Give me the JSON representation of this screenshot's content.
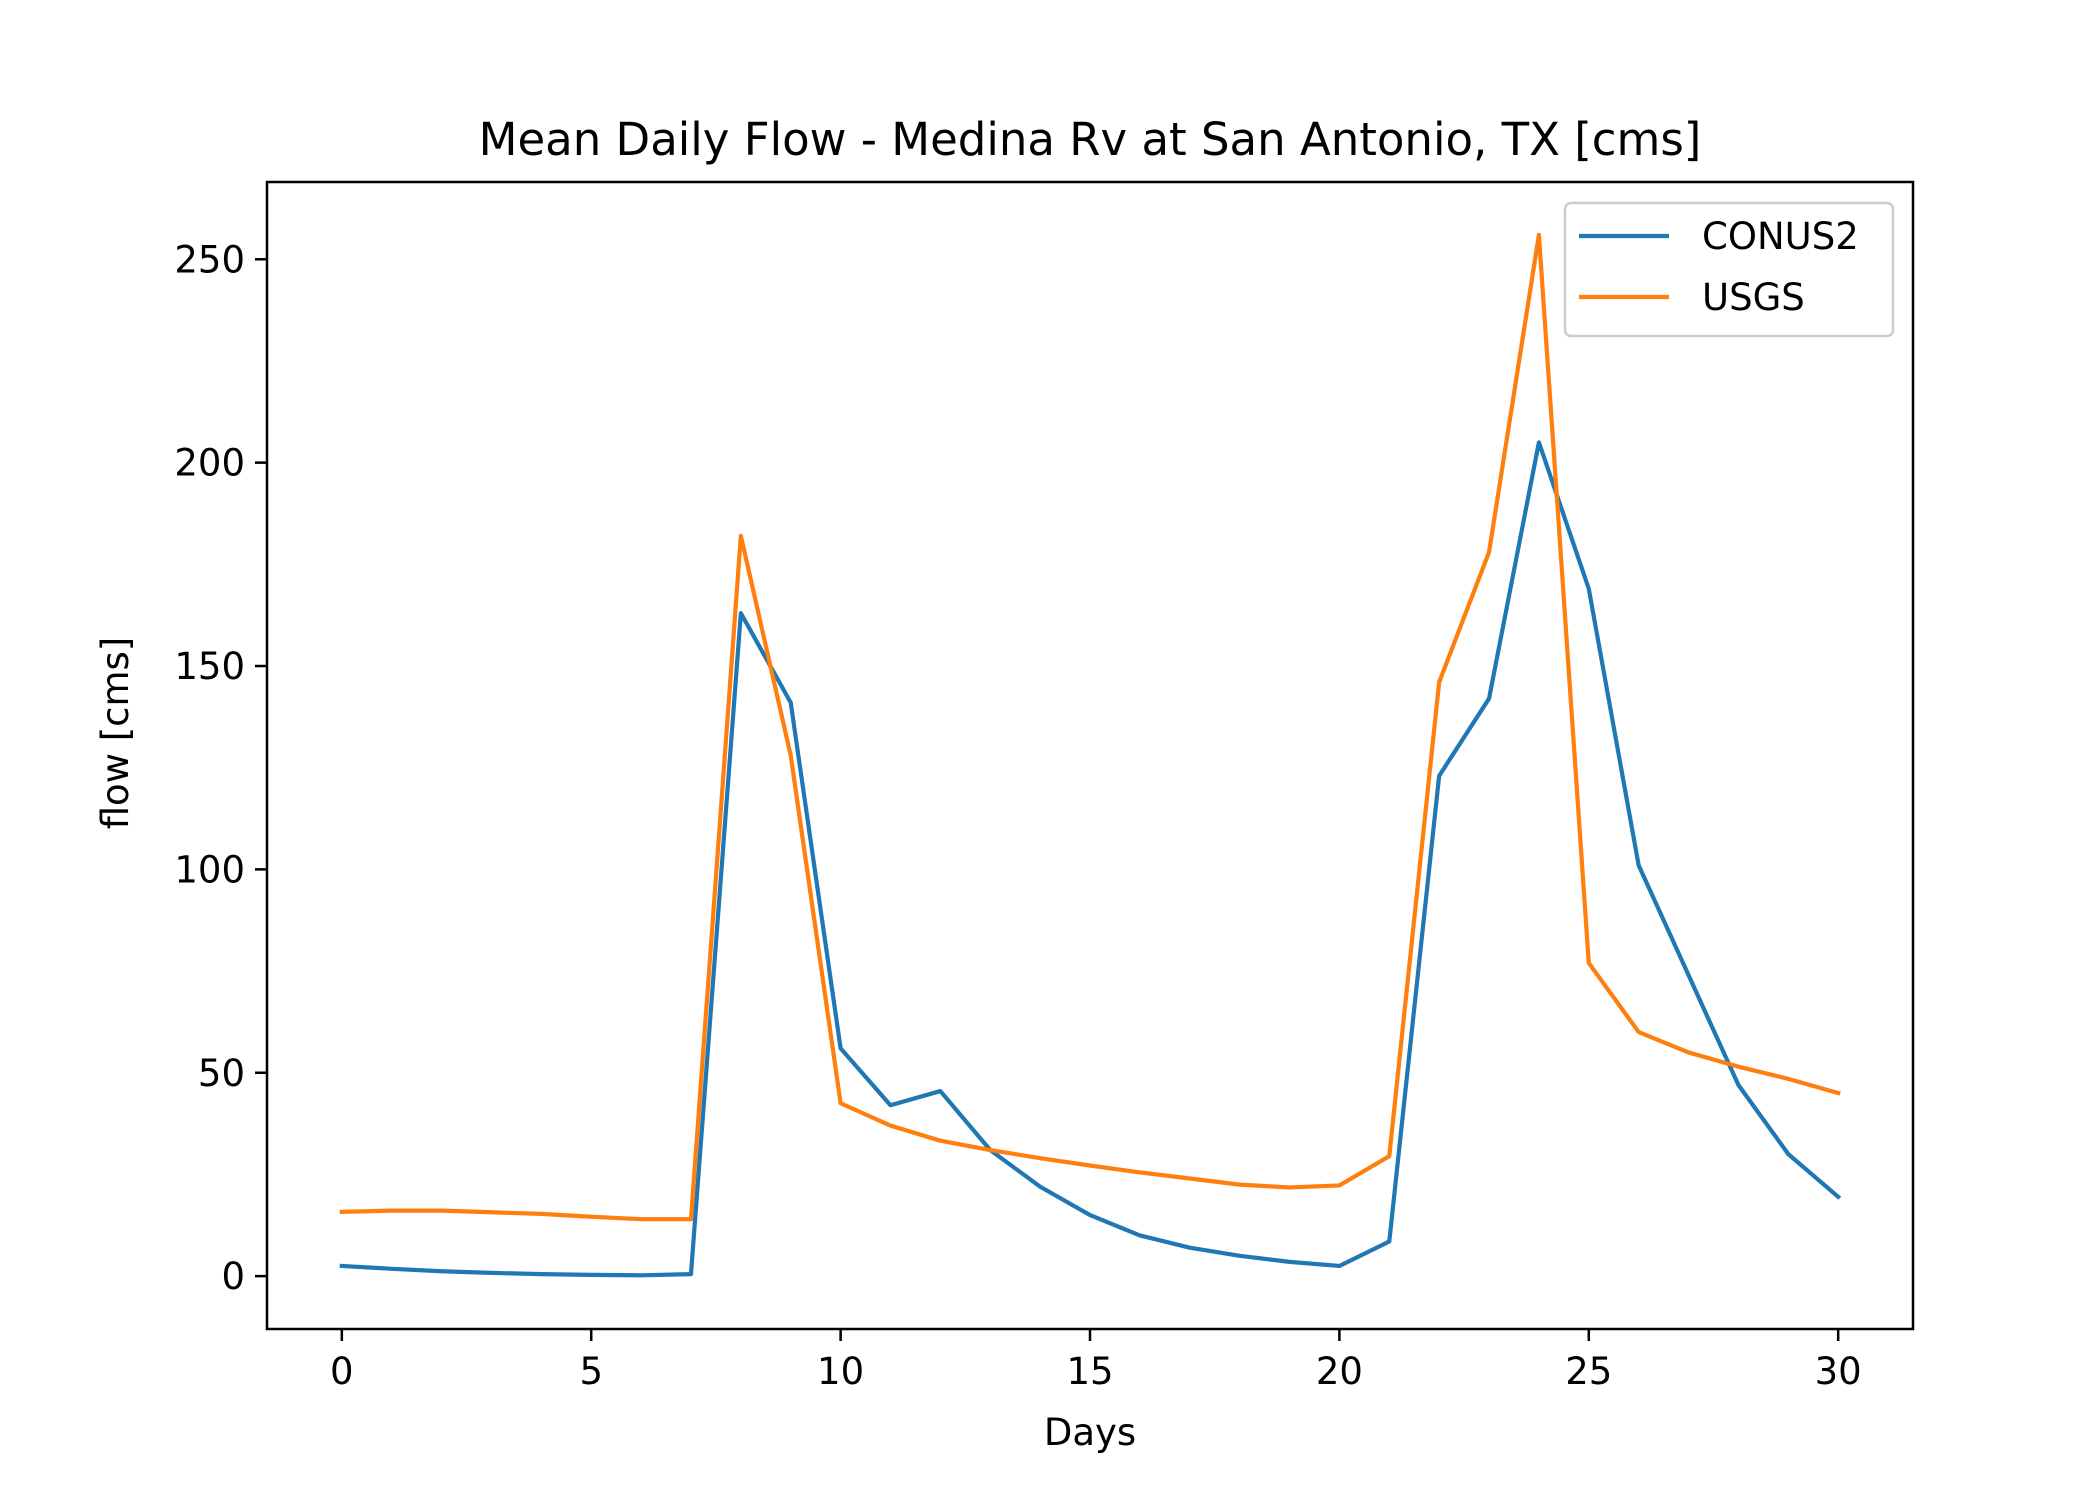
{
  "chart_data": {
    "type": "line",
    "title": "Mean Daily Flow - Medina Rv at San Antonio, TX [cms]",
    "xlabel": "Days",
    "ylabel": "flow [cms]",
    "xlim": [
      -1.5,
      31.5
    ],
    "ylim": [
      -13,
      269
    ],
    "xticks": [
      0,
      5,
      10,
      15,
      20,
      25,
      30
    ],
    "yticks": [
      0,
      50,
      100,
      150,
      200,
      250
    ],
    "grid": false,
    "legend_position": "top-right",
    "x": [
      0,
      1,
      2,
      3,
      4,
      5,
      6,
      7,
      8,
      9,
      10,
      11,
      12,
      13,
      14,
      15,
      16,
      17,
      18,
      19,
      20,
      21,
      22,
      23,
      24,
      25,
      26,
      27,
      28,
      29,
      30
    ],
    "series": [
      {
        "name": "CONUS2",
        "color": "#1f77b4",
        "values": [
          2.5,
          1.8,
          1.2,
          0.8,
          0.5,
          0.3,
          0.2,
          0.5,
          163,
          141,
          56,
          42,
          45.5,
          31,
          22,
          15,
          10,
          7,
          5,
          3.5,
          2.5,
          8.5,
          123,
          142,
          205,
          169,
          101,
          74,
          47,
          30,
          19.5
        ]
      },
      {
        "name": "USGS",
        "color": "#ff7f0e",
        "values": [
          15.8,
          16.1,
          16.1,
          15.7,
          15.3,
          14.6,
          14,
          14,
          182,
          128,
          42.5,
          37,
          33.3,
          31,
          29,
          27.2,
          25.5,
          24,
          22.5,
          21.8,
          22.3,
          29.5,
          146,
          178,
          256,
          77,
          60,
          55,
          51.5,
          48.5,
          45
        ]
      }
    ]
  }
}
